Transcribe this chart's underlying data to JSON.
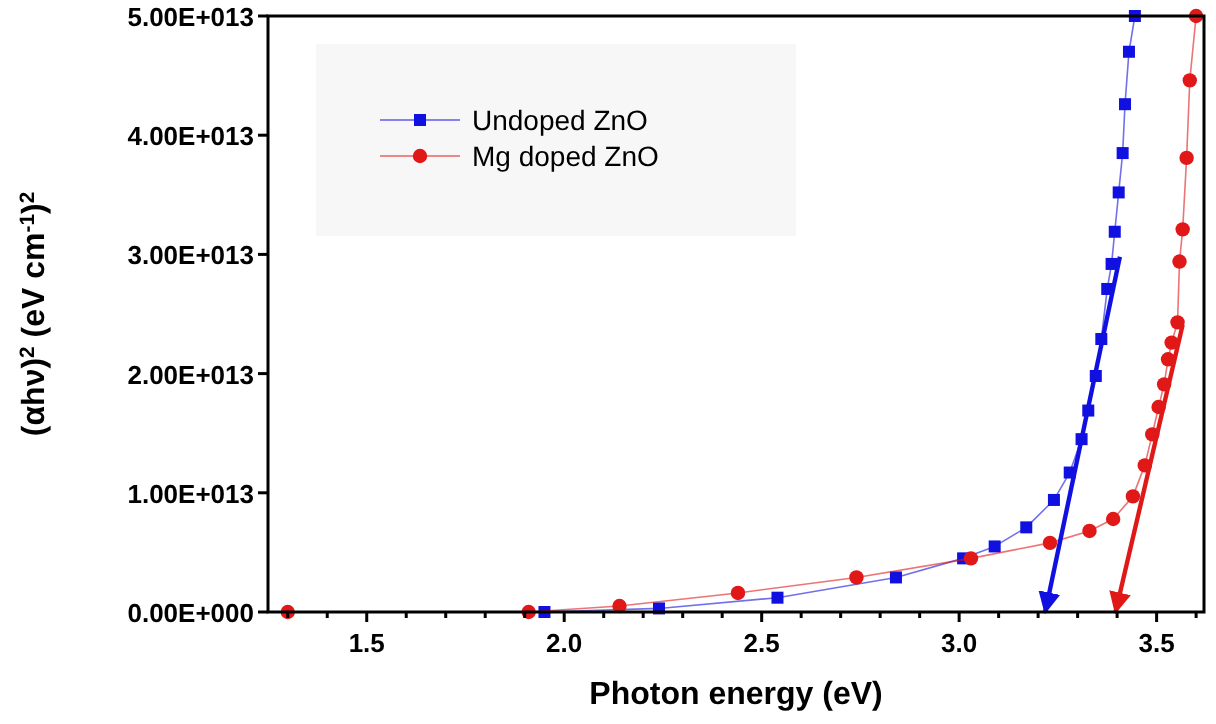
{
  "chart_data": {
    "type": "line",
    "xlabel": "Photon energy (eV)",
    "ylabel": "(αhν)$^{2}$ (eV cm$^{-1}$)$^{2}$",
    "xlim": [
      1.25,
      3.62
    ],
    "ylim": [
      0,
      50000000000000.0
    ],
    "xticks": [
      {
        "value": 1.3,
        "label": null
      },
      {
        "value": 1.4,
        "label": null
      },
      {
        "value": 1.5,
        "label": "1.5"
      },
      {
        "value": 1.6,
        "label": null
      },
      {
        "value": 1.7,
        "label": null
      },
      {
        "value": 1.8,
        "label": null
      },
      {
        "value": 1.9,
        "label": null
      },
      {
        "value": 2.0,
        "label": "2.0"
      },
      {
        "value": 2.1,
        "label": null
      },
      {
        "value": 2.2,
        "label": null
      },
      {
        "value": 2.3,
        "label": null
      },
      {
        "value": 2.4,
        "label": null
      },
      {
        "value": 2.5,
        "label": "2.5"
      },
      {
        "value": 2.6,
        "label": null
      },
      {
        "value": 2.7,
        "label": null
      },
      {
        "value": 2.8,
        "label": null
      },
      {
        "value": 2.9,
        "label": null
      },
      {
        "value": 3.0,
        "label": "3.0"
      },
      {
        "value": 3.1,
        "label": null
      },
      {
        "value": 3.2,
        "label": null
      },
      {
        "value": 3.3,
        "label": null
      },
      {
        "value": 3.4,
        "label": null
      },
      {
        "value": 3.5,
        "label": "3.5"
      },
      {
        "value": 3.6,
        "label": null
      }
    ],
    "yticks": [
      {
        "value": 0,
        "label": "0.00E+000"
      },
      {
        "value": 10000000000000.0,
        "label": "1.00E+013"
      },
      {
        "value": 20000000000000.0,
        "label": "2.00E+013"
      },
      {
        "value": 30000000000000.0,
        "label": "3.00E+013"
      },
      {
        "value": 40000000000000.0,
        "label": "4.00E+013"
      },
      {
        "value": 50000000000000.0,
        "label": "5.00E+013"
      }
    ],
    "grid": false,
    "legend": "top left",
    "series": [
      {
        "name": "Undoped ZnO",
        "color": "#1010e0",
        "marker": "square",
        "x": [
          1.95,
          2.24,
          2.54,
          2.84,
          3.01,
          3.09,
          3.17,
          3.24,
          3.28,
          3.31,
          3.327,
          3.346,
          3.36,
          3.375,
          3.386,
          3.394,
          3.404,
          3.414,
          3.42,
          3.43,
          3.445
        ],
        "values": [
          0,
          300000000000.0,
          1200000000000.0,
          2900000000000.0,
          4500000000000.0,
          5500000000000.0,
          7100000000000.0,
          9400000000000.0,
          11700000000000.0,
          14500000000000.0,
          16900000000000.0,
          19800000000000.0,
          22900000000000.0,
          27100000000000.0,
          29200000000000.0,
          31900000000000.0,
          35200000000000.0,
          38500000000000.0,
          42600000000000.0,
          47000000000000.0,
          50000000000000.0
        ]
      },
      {
        "name": "Mg doped ZnO",
        "color": "#e01818",
        "marker": "circle",
        "x": [
          1.3,
          1.91,
          2.14,
          2.44,
          2.74,
          3.03,
          3.23,
          3.33,
          3.39,
          3.44,
          3.47,
          3.489,
          3.505,
          3.519,
          3.529,
          3.538,
          3.553,
          3.558,
          3.566,
          3.576,
          3.584,
          3.6
        ],
        "values": [
          0,
          0,
          500000000000.0,
          1600000000000.0,
          2900000000000.0,
          4500000000000.0,
          5800000000000.0,
          6800000000000.0,
          7800000000000.0,
          9700000000000.0,
          12300000000000.0,
          14900000000000.0,
          17200000000000.0,
          19100000000000.0,
          21200000000000.0,
          22600000000000.0,
          24300000000000.0,
          29400000000000.0,
          32100000000000.0,
          38100000000000.0,
          44600000000000.0,
          50000000000000.0
        ]
      },
      {
        "color": "#1010e0",
        "marker": "none",
        "x": [
          3.407,
          3.218
        ],
        "values": [
          29800000000000.0,
          0
        ]
      },
      {
        "color": "#e01818",
        "marker": "none",
        "x": [
          3.566,
          3.396
        ],
        "values": [
          24100000000000.0,
          0
        ]
      }
    ]
  }
}
